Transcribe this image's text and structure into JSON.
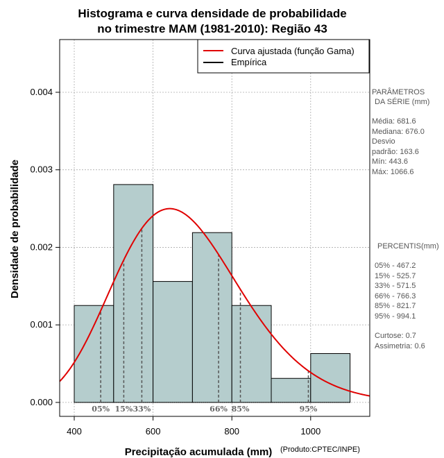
{
  "chart_data": {
    "type": "histogram",
    "title_line1": "Histograma e curva densidade de probabilidade",
    "title_line2": "no trimestre MAM (1981-2010): Região 43",
    "xlabel": "Precipitação acumulada (mm)",
    "ylabel": "Densidade de probabilidade",
    "credit": "(Produto:CPTEC/INPE)",
    "xlim": [
      363,
      1150
    ],
    "ylim": [
      -0.00018,
      0.00468
    ],
    "x_ticks": [
      400,
      600,
      800,
      1000
    ],
    "x_tick_labels": [
      "400",
      "600",
      "800",
      "1000"
    ],
    "y_ticks": [
      0.0,
      0.001,
      0.002,
      0.003,
      0.004
    ],
    "y_tick_labels": [
      "0.000",
      "0.001",
      "0.002",
      "0.003",
      "0.004"
    ],
    "grid": true,
    "bins": [
      {
        "start": 400,
        "end": 500,
        "density": 0.00125
      },
      {
        "start": 500,
        "end": 600,
        "density": 0.00281
      },
      {
        "start": 600,
        "end": 700,
        "density": 0.00156
      },
      {
        "start": 700,
        "end": 800,
        "density": 0.00219
      },
      {
        "start": 800,
        "end": 900,
        "density": 0.00125
      },
      {
        "start": 900,
        "end": 1000,
        "density": 0.00031
      },
      {
        "start": 1000,
        "end": 1100,
        "density": 0.00063
      }
    ],
    "bar_color": "#b5cdcd",
    "curve_color": "#e00000",
    "gamma_fit": {
      "mean": 681.6,
      "sd": 163.6
    },
    "percentile_markers": [
      {
        "label": "05%",
        "value": 467.2
      },
      {
        "label": "15%",
        "value": 525.7
      },
      {
        "label": "33%",
        "value": 571.5
      },
      {
        "label": "66%",
        "value": 766.3
      },
      {
        "label": "85%",
        "value": 821.7
      },
      {
        "label": "95%",
        "value": 994.1
      }
    ],
    "legend": {
      "position": "top-right",
      "entries": [
        {
          "label": "Curva ajustada (função Gama)",
          "color": "#e00000"
        },
        {
          "label": "Empírica",
          "color": "#000000"
        }
      ]
    },
    "side_panel": {
      "params_title1": "PARÂMETROS",
      "params_title2": "DA SÉRIE (mm)",
      "params_lines": [
        "Média:  681.6",
        "Mediana:  676.0",
        "Desvio",
        "padrão:  163.6",
        "Mín:  443.6",
        "Máx:  1066.6"
      ],
      "percentis_title": "PERCENTIS(mm)",
      "percentis_lines": [
        "05% -   467.2",
        "15% -   525.7",
        "33% -   571.5",
        "66% -   766.3",
        "85% -   821.7",
        "95% -   994.1"
      ],
      "extra_lines": [
        "Curtose:  0.7",
        "Assimetria:  0.6"
      ]
    }
  }
}
